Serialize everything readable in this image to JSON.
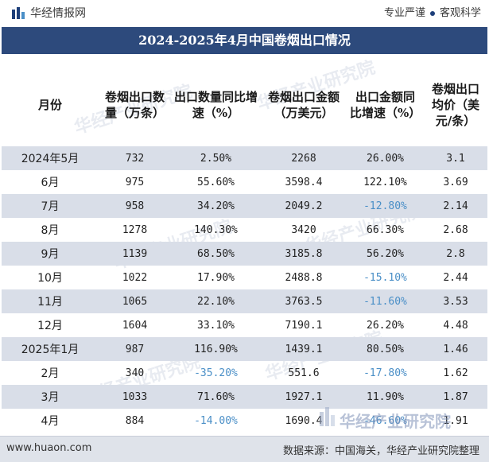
{
  "header": {
    "site_name": "华经情报网",
    "tagline_left": "专业严谨",
    "tagline_right": "客观科学"
  },
  "title": "2024-2025年4月中国卷烟出口情况",
  "table": {
    "columns": [
      "月份",
      "卷烟出口数量（万条）",
      "出口数量同比增速（%）",
      "卷烟出口金额（万美元）",
      "出口金额同比增速（%）",
      "卷烟出口均价（美元/条）"
    ],
    "rows": [
      [
        "2024年5月",
        "732",
        "2.50%",
        "2268",
        "26.00%",
        "3.1"
      ],
      [
        "6月",
        "975",
        "55.60%",
        "3598.4",
        "122.10%",
        "3.69"
      ],
      [
        "7月",
        "958",
        "34.20%",
        "2049.2",
        "-12.80%",
        "2.14"
      ],
      [
        "8月",
        "1278",
        "140.30%",
        "3420",
        "66.30%",
        "2.68"
      ],
      [
        "9月",
        "1139",
        "68.50%",
        "3185.8",
        "56.20%",
        "2.8"
      ],
      [
        "10月",
        "1022",
        "17.90%",
        "2488.8",
        "-15.10%",
        "2.44"
      ],
      [
        "11月",
        "1065",
        "22.10%",
        "3763.5",
        "-11.60%",
        "3.53"
      ],
      [
        "12月",
        "1604",
        "33.10%",
        "7190.1",
        "26.20%",
        "4.48"
      ],
      [
        "2025年1月",
        "987",
        "116.90%",
        "1439.1",
        "80.50%",
        "1.46"
      ],
      [
        "2月",
        "340",
        "-35.20%",
        "551.6",
        "-17.80%",
        "1.62"
      ],
      [
        "3月",
        "1033",
        "71.60%",
        "1927.1",
        "11.90%",
        "1.87"
      ],
      [
        "4月",
        "884",
        "-14.00%",
        "1690.4",
        "-46.60%",
        "1.91"
      ]
    ]
  },
  "footer": {
    "url": "www.huaon.com",
    "source": "数据来源：中国海关，华经产业研究院整理"
  },
  "watermark": "华经产业研究院",
  "colors": {
    "header_bar": "#2d4a7c",
    "alt_row": "#d9dee8",
    "negative": "#4a8fc7"
  }
}
